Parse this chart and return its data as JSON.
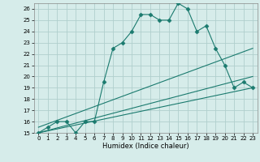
{
  "title": "",
  "xlabel": "Humidex (Indice chaleur)",
  "ylabel": "",
  "bg_color": "#d6ecea",
  "grid_color": "#b0cfcd",
  "line_color": "#1a7a6e",
  "xlim": [
    -0.5,
    23.5
  ],
  "ylim": [
    15,
    26.5
  ],
  "xticks": [
    0,
    1,
    2,
    3,
    4,
    5,
    6,
    7,
    8,
    9,
    10,
    11,
    12,
    13,
    14,
    15,
    16,
    17,
    18,
    19,
    20,
    21,
    22,
    23
  ],
  "yticks": [
    15,
    16,
    17,
    18,
    19,
    20,
    21,
    22,
    23,
    24,
    25,
    26
  ],
  "series": [
    {
      "x": [
        0,
        1,
        2,
        3,
        4,
        5,
        6,
        7,
        8,
        9,
        10,
        11,
        12,
        13,
        14,
        15,
        16,
        17,
        18,
        19,
        20,
        21,
        22,
        23
      ],
      "y": [
        15,
        15.5,
        16,
        16,
        15,
        16,
        16,
        19.5,
        22.5,
        23,
        24,
        25.5,
        25.5,
        25,
        25,
        26.5,
        26,
        24,
        24.5,
        22.5,
        21,
        19,
        19.5,
        19
      ],
      "marker": "D",
      "markersize": 2.5
    },
    {
      "x": [
        0,
        23
      ],
      "y": [
        15.5,
        22.5
      ],
      "marker": null,
      "markersize": 0
    },
    {
      "x": [
        0,
        23
      ],
      "y": [
        15,
        20
      ],
      "marker": null,
      "markersize": 0
    },
    {
      "x": [
        0,
        23
      ],
      "y": [
        15,
        19
      ],
      "marker": null,
      "markersize": 0
    }
  ]
}
